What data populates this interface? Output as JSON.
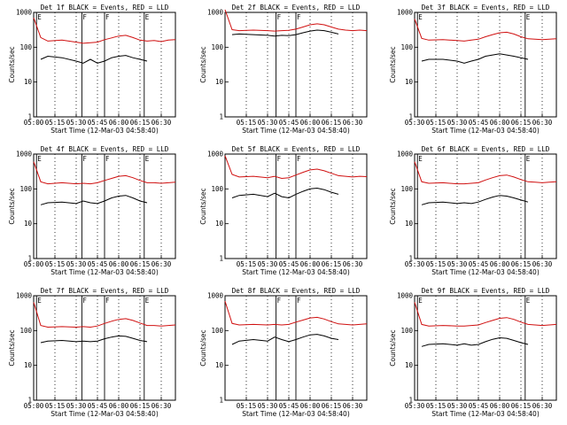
{
  "figure": {
    "time_axis_label": "Start Time (12-Mar-03 04:58:40)",
    "y_axis_label": "Counts/sec",
    "legend_text": "BLACK = Events, RED = LLD"
  },
  "chart_data": [
    {
      "type": "line",
      "title": "Det 1f BLACK = Events, RED = LLD",
      "xlabel": "Start Time (12-Mar-03 04:58:40)",
      "ylabel": "Counts/sec",
      "x_ticks": [
        "05:00",
        "05:15",
        "05:30",
        "05:45",
        "06:00",
        "06:15",
        "06:30"
      ],
      "y_ticks": [
        "1",
        "10",
        "100",
        "1000"
      ],
      "ylim": [
        1,
        1000
      ],
      "y_scale": "log",
      "x_range_minutes": [
        0,
        100
      ],
      "series": [
        {
          "name": "Events",
          "color": "#000000",
          "x": [
            0,
            5,
            10,
            20,
            30,
            35,
            40,
            45,
            50,
            55,
            60,
            65,
            70,
            75,
            80,
            85,
            90,
            95,
            100
          ],
          "y": [
            0,
            45,
            55,
            50,
            40,
            35,
            45,
            35,
            40,
            50,
            55,
            58,
            50,
            45,
            40,
            0,
            0,
            0,
            0
          ]
        },
        {
          "name": "LLD",
          "color": "#d01010",
          "x": [
            0,
            5,
            10,
            20,
            30,
            35,
            40,
            45,
            50,
            55,
            60,
            65,
            70,
            75,
            80,
            85,
            90,
            95,
            100
          ],
          "y": [
            700,
            190,
            150,
            160,
            140,
            130,
            135,
            140,
            165,
            185,
            210,
            220,
            190,
            160,
            150,
            155,
            145,
            160,
            165
          ]
        }
      ],
      "markers": {
        "E": [
          2,
          78
        ],
        "F": [
          34,
          50
        ]
      }
    },
    {
      "type": "line",
      "title": "Det 2f BLACK = Events, RED = LLD",
      "xlabel": "Start Time (12-Mar-03 04:58:40)",
      "ylabel": "Counts/sec",
      "x_ticks": [
        "05:15",
        "05:30",
        "05:45",
        "06:00",
        "06:15",
        "06:30"
      ],
      "y_ticks": [
        "1",
        "10",
        "100",
        "1000"
      ],
      "ylim": [
        1,
        1000
      ],
      "y_scale": "log",
      "x_range_minutes": [
        0,
        100
      ],
      "series": [
        {
          "name": "Events",
          "color": "#000000",
          "x": [
            0,
            5,
            10,
            20,
            30,
            35,
            40,
            45,
            50,
            55,
            60,
            65,
            70,
            75,
            80,
            85,
            90,
            95,
            100
          ],
          "y": [
            0,
            230,
            240,
            230,
            220,
            210,
            220,
            215,
            230,
            260,
            290,
            310,
            300,
            270,
            240,
            0,
            0,
            0,
            0
          ]
        },
        {
          "name": "LLD",
          "color": "#d01010",
          "x": [
            0,
            5,
            10,
            20,
            30,
            35,
            40,
            45,
            50,
            55,
            60,
            65,
            70,
            75,
            80,
            85,
            90,
            95,
            100
          ],
          "y": [
            1200,
            320,
            300,
            310,
            300,
            290,
            300,
            305,
            330,
            380,
            440,
            470,
            440,
            380,
            330,
            310,
            300,
            310,
            300
          ]
        }
      ],
      "markers": {
        "E": [],
        "F": [
          36,
          50
        ]
      }
    },
    {
      "type": "line",
      "title": "Det 3f BLACK = Events, RED = LLD",
      "xlabel": "Start Time (12-Mar-03 04:58:40)",
      "ylabel": "Counts/sec",
      "x_ticks": [
        "05:30",
        "05:15",
        "05:30",
        "05:45",
        "06:00",
        "06:15",
        "06:30"
      ],
      "y_ticks": [
        "1",
        "10",
        "100",
        "1000"
      ],
      "ylim": [
        1,
        1000
      ],
      "y_scale": "log",
      "x_range_minutes": [
        0,
        100
      ],
      "series": [
        {
          "name": "Events",
          "color": "#000000",
          "x": [
            0,
            5,
            10,
            20,
            30,
            35,
            40,
            45,
            50,
            55,
            60,
            65,
            70,
            75,
            80,
            85,
            90,
            95,
            100
          ],
          "y": [
            0,
            40,
            45,
            45,
            40,
            35,
            40,
            45,
            55,
            60,
            65,
            60,
            55,
            50,
            45,
            0,
            0,
            0,
            0
          ]
        },
        {
          "name": "LLD",
          "color": "#d01010",
          "x": [
            0,
            5,
            10,
            20,
            30,
            35,
            40,
            45,
            50,
            55,
            60,
            65,
            70,
            75,
            80,
            85,
            90,
            95,
            100
          ],
          "y": [
            650,
            180,
            160,
            165,
            155,
            150,
            160,
            170,
            200,
            230,
            260,
            270,
            240,
            200,
            175,
            170,
            165,
            170,
            175
          ]
        }
      ],
      "markers": {
        "E": [
          2,
          78
        ],
        "F": []
      }
    },
    {
      "type": "line",
      "title": "Det 4f BLACK = Events, RED = LLD",
      "xlabel": "Start Time (12-Mar-03 04:58:40)",
      "ylabel": "Counts/sec",
      "x_ticks": [
        "05:00",
        "05:15",
        "05:30",
        "05:45",
        "06:00",
        "06:15",
        "06:30"
      ],
      "y_ticks": [
        "1",
        "10",
        "100",
        "1000"
      ],
      "ylim": [
        1,
        1000
      ],
      "y_scale": "log",
      "x_range_minutes": [
        0,
        100
      ],
      "series": [
        {
          "name": "Events",
          "color": "#000000",
          "x": [
            0,
            5,
            10,
            20,
            30,
            35,
            40,
            45,
            50,
            55,
            60,
            65,
            70,
            75,
            80,
            85,
            90,
            95,
            100
          ],
          "y": [
            0,
            35,
            40,
            42,
            38,
            45,
            40,
            38,
            45,
            55,
            62,
            65,
            55,
            45,
            40,
            0,
            0,
            0,
            0
          ]
        },
        {
          "name": "LLD",
          "color": "#d01010",
          "x": [
            0,
            5,
            10,
            20,
            30,
            35,
            40,
            45,
            50,
            55,
            60,
            65,
            70,
            75,
            80,
            85,
            90,
            95,
            100
          ],
          "y": [
            600,
            160,
            140,
            150,
            140,
            145,
            140,
            150,
            175,
            200,
            230,
            240,
            210,
            175,
            150,
            150,
            145,
            150,
            155
          ]
        }
      ],
      "markers": {
        "E": [
          2,
          78
        ],
        "F": [
          34,
          50
        ]
      }
    },
    {
      "type": "line",
      "title": "Det 5f BLACK = Events, RED = LLD",
      "xlabel": "Start Time (12-Mar-03 04:58:40)",
      "ylabel": "Counts/sec",
      "x_ticks": [
        "05:15",
        "05:30",
        "05:45",
        "06:00",
        "06:15",
        "06:30"
      ],
      "y_ticks": [
        "1",
        "10",
        "100",
        "1000"
      ],
      "ylim": [
        1,
        1000
      ],
      "y_scale": "log",
      "x_range_minutes": [
        0,
        100
      ],
      "series": [
        {
          "name": "Events",
          "color": "#000000",
          "x": [
            0,
            5,
            10,
            20,
            30,
            35,
            40,
            45,
            50,
            55,
            60,
            65,
            70,
            75,
            80,
            85,
            90,
            95,
            100
          ],
          "y": [
            0,
            55,
            65,
            70,
            60,
            75,
            60,
            55,
            70,
            85,
            100,
            105,
            95,
            80,
            70,
            0,
            0,
            0,
            0
          ]
        },
        {
          "name": "LLD",
          "color": "#d01010",
          "x": [
            0,
            5,
            10,
            20,
            30,
            35,
            40,
            45,
            50,
            55,
            60,
            65,
            70,
            75,
            80,
            85,
            90,
            95,
            100
          ],
          "y": [
            900,
            260,
            220,
            230,
            210,
            230,
            200,
            210,
            250,
            300,
            350,
            370,
            330,
            280,
            240,
            230,
            220,
            230,
            225
          ]
        }
      ],
      "markers": {
        "E": [],
        "F": [
          36,
          50
        ]
      }
    },
    {
      "type": "line",
      "title": "Det 6f BLACK = Events, RED = LLD",
      "xlabel": "Start Time (12-Mar-03 04:58:40)",
      "ylabel": "Counts/sec",
      "x_ticks": [
        "05:30",
        "05:15",
        "05:30",
        "05:45",
        "06:00",
        "06:15",
        "06:30"
      ],
      "y_ticks": [
        "1",
        "10",
        "100",
        "1000"
      ],
      "ylim": [
        1,
        1000
      ],
      "y_scale": "log",
      "x_range_minutes": [
        0,
        100
      ],
      "series": [
        {
          "name": "Events",
          "color": "#000000",
          "x": [
            0,
            5,
            10,
            20,
            30,
            35,
            40,
            45,
            50,
            55,
            60,
            65,
            70,
            75,
            80,
            85,
            90,
            95,
            100
          ],
          "y": [
            0,
            35,
            40,
            42,
            38,
            40,
            38,
            42,
            50,
            58,
            65,
            62,
            55,
            48,
            42,
            0,
            0,
            0,
            0
          ]
        },
        {
          "name": "LLD",
          "color": "#d01010",
          "x": [
            0,
            5,
            10,
            20,
            30,
            35,
            40,
            45,
            50,
            55,
            60,
            65,
            70,
            75,
            80,
            85,
            90,
            95,
            100
          ],
          "y": [
            600,
            160,
            145,
            150,
            140,
            140,
            145,
            150,
            180,
            210,
            240,
            250,
            220,
            185,
            160,
            155,
            150,
            155,
            160
          ]
        }
      ],
      "markers": {
        "E": [
          2,
          78
        ],
        "F": []
      }
    },
    {
      "type": "line",
      "title": "Det 7f BLACK = Events, RED = LLD",
      "xlabel": "Start Time (12-Mar-03 04:58:40)",
      "ylabel": "Counts/sec",
      "x_ticks": [
        "05:00",
        "05:15",
        "05:30",
        "05:45",
        "06:00",
        "06:15",
        "06:30"
      ],
      "y_ticks": [
        "1",
        "10",
        "100",
        "1000"
      ],
      "ylim": [
        1,
        1000
      ],
      "y_scale": "log",
      "x_range_minutes": [
        0,
        100
      ],
      "series": [
        {
          "name": "Events",
          "color": "#000000",
          "x": [
            0,
            5,
            10,
            20,
            30,
            35,
            40,
            45,
            50,
            55,
            60,
            65,
            70,
            75,
            80,
            85,
            90,
            95,
            100
          ],
          "y": [
            0,
            45,
            50,
            52,
            48,
            50,
            48,
            50,
            58,
            65,
            70,
            68,
            60,
            52,
            48,
            0,
            0,
            0,
            0
          ]
        },
        {
          "name": "LLD",
          "color": "#d01010",
          "x": [
            0,
            5,
            10,
            20,
            30,
            35,
            40,
            45,
            50,
            55,
            60,
            65,
            70,
            75,
            80,
            85,
            90,
            95,
            100
          ],
          "y": [
            650,
            140,
            125,
            130,
            125,
            130,
            125,
            135,
            160,
            185,
            210,
            220,
            195,
            165,
            140,
            140,
            135,
            140,
            145
          ]
        }
      ],
      "markers": {
        "E": [
          2,
          78
        ],
        "F": [
          34,
          50
        ]
      }
    },
    {
      "type": "line",
      "title": "Det 8f BLACK = Events, RED = LLD",
      "xlabel": "Start Time (12-Mar-03 04:58:40)",
      "ylabel": "Counts/sec",
      "x_ticks": [
        "05:15",
        "05:30",
        "05:45",
        "06:00",
        "06:15",
        "06:30"
      ],
      "y_ticks": [
        "1",
        "10",
        "100",
        "1000"
      ],
      "ylim": [
        1,
        1000
      ],
      "y_scale": "log",
      "x_range_minutes": [
        0,
        100
      ],
      "series": [
        {
          "name": "Events",
          "color": "#000000",
          "x": [
            0,
            5,
            10,
            20,
            30,
            35,
            40,
            45,
            50,
            55,
            60,
            65,
            70,
            75,
            80,
            85,
            90,
            95,
            100
          ],
          "y": [
            0,
            40,
            50,
            55,
            50,
            65,
            55,
            48,
            55,
            65,
            75,
            78,
            70,
            60,
            55,
            0,
            0,
            0,
            0
          ]
        },
        {
          "name": "LLD",
          "color": "#d01010",
          "x": [
            0,
            5,
            10,
            20,
            30,
            35,
            40,
            45,
            50,
            55,
            60,
            65,
            70,
            75,
            80,
            85,
            90,
            95,
            100
          ],
          "y": [
            700,
            160,
            145,
            150,
            145,
            150,
            145,
            150,
            175,
            200,
            230,
            240,
            215,
            180,
            155,
            150,
            145,
            150,
            155
          ]
        }
      ],
      "markers": {
        "E": [],
        "F": [
          36,
          50
        ]
      }
    },
    {
      "type": "line",
      "title": "Det 9f BLACK = Events, RED = LLD",
      "xlabel": "Start Time (12-Mar-03 04:58:40)",
      "ylabel": "Counts/sec",
      "x_ticks": [
        "05:30",
        "05:15",
        "05:30",
        "05:45",
        "06:00",
        "06:15",
        "06:30"
      ],
      "y_ticks": [
        "1",
        "10",
        "100",
        "1000"
      ],
      "ylim": [
        1,
        1000
      ],
      "y_scale": "log",
      "x_range_minutes": [
        0,
        100
      ],
      "series": [
        {
          "name": "Events",
          "color": "#000000",
          "x": [
            0,
            5,
            10,
            20,
            30,
            35,
            40,
            45,
            50,
            55,
            60,
            65,
            70,
            75,
            80,
            85,
            90,
            95,
            100
          ],
          "y": [
            0,
            35,
            40,
            42,
            38,
            42,
            38,
            40,
            48,
            56,
            62,
            60,
            52,
            45,
            40,
            0,
            0,
            0,
            0
          ]
        },
        {
          "name": "LLD",
          "color": "#d01010",
          "x": [
            0,
            5,
            10,
            20,
            30,
            35,
            40,
            45,
            50,
            55,
            60,
            65,
            70,
            75,
            80,
            85,
            90,
            95,
            100
          ],
          "y": [
            650,
            150,
            135,
            140,
            135,
            135,
            140,
            145,
            170,
            195,
            225,
            235,
            210,
            175,
            150,
            145,
            140,
            145,
            150
          ]
        }
      ],
      "markers": {
        "E": [
          2,
          78
        ],
        "F": []
      }
    }
  ]
}
